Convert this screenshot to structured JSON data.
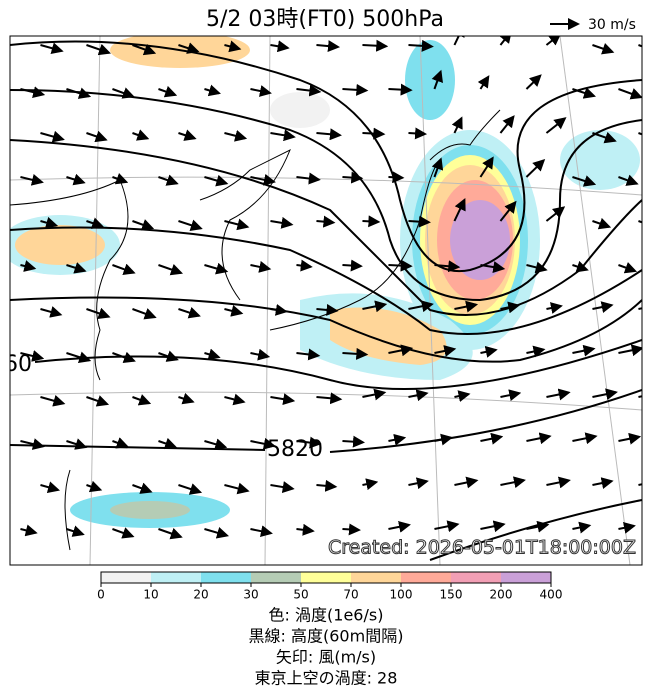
{
  "header": {
    "title": "5/2  03時(FT0)    500hPa",
    "wind_scale": "30 m/s"
  },
  "map": {
    "contour_labels": [
      "60",
      "5820"
    ],
    "stamp": "Created: 2026-05-01T18:00:00Z"
  },
  "colorbar": {
    "ticks": [
      0,
      10,
      20,
      30,
      50,
      70,
      100,
      150,
      200,
      400
    ],
    "colors": [
      "#f2f2f2",
      "#bff0f5",
      "#7fe0ee",
      "#b5ccb5",
      "#ffff99",
      "#ffd699",
      "#ffaa99",
      "#f29fb5",
      "#caa0d8"
    ]
  },
  "legend": [
    "色: 渦度(1e6/s)",
    "黒線: 高度(60m間隔)",
    "矢印: 風(m/s)",
    "東京上空の渦度: 28"
  ]
}
